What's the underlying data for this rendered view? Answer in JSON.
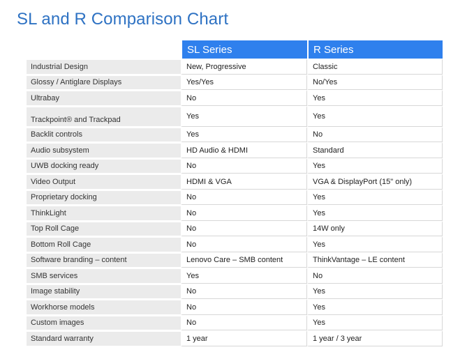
{
  "title": "SL and R Comparison Chart",
  "table": {
    "headers": [
      "SL Series",
      "R Series"
    ],
    "rows": [
      {
        "feature": "Industrial Design",
        "sl": "New, Progressive",
        "r": "Classic"
      },
      {
        "feature": "Glossy / Antiglare Displays",
        "sl": "Yes/Yes",
        "r": "No/Yes"
      },
      {
        "feature": "Ultrabay",
        "sl": "No",
        "r": "Yes"
      },
      {
        "feature": "Trackpoint®   and Trackpad",
        "sl": "Yes",
        "r": "Yes"
      },
      {
        "feature": "Backlit controls",
        "sl": "Yes",
        "r": "No"
      },
      {
        "feature": "Audio subsystem",
        "sl": "HD Audio & HDMI",
        "r": "Standard"
      },
      {
        "feature": "UWB docking ready",
        "sl": "No",
        "r": "Yes"
      },
      {
        "feature": "Video Output",
        "sl": "HDMI & VGA",
        "r": "VGA & DisplayPort (15\" only)"
      },
      {
        "feature": "Proprietary docking",
        "sl": "No",
        "r": "Yes"
      },
      {
        "feature": "ThinkLight",
        "sl": "No",
        "r": "Yes"
      },
      {
        "feature": "Top Roll Cage",
        "sl": "No",
        "r": "14W only"
      },
      {
        "feature": "Bottom Roll Cage",
        "sl": "No",
        "r": "Yes"
      },
      {
        "feature": "Software branding – content",
        "sl": "Lenovo Care – SMB content",
        "r": "ThinkVantage – LE content"
      },
      {
        "feature": "SMB services",
        "sl": "Yes",
        "r": "No"
      },
      {
        "feature": "Image stability",
        "sl": "No",
        "r": "Yes"
      },
      {
        "feature": "Workhorse models",
        "sl": "No",
        "r": "Yes"
      },
      {
        "feature": "Custom images",
        "sl": "No",
        "r": "Yes"
      },
      {
        "feature": "Standard warranty",
        "sl": "1 year",
        "r": "1 year / 3 year"
      }
    ]
  }
}
